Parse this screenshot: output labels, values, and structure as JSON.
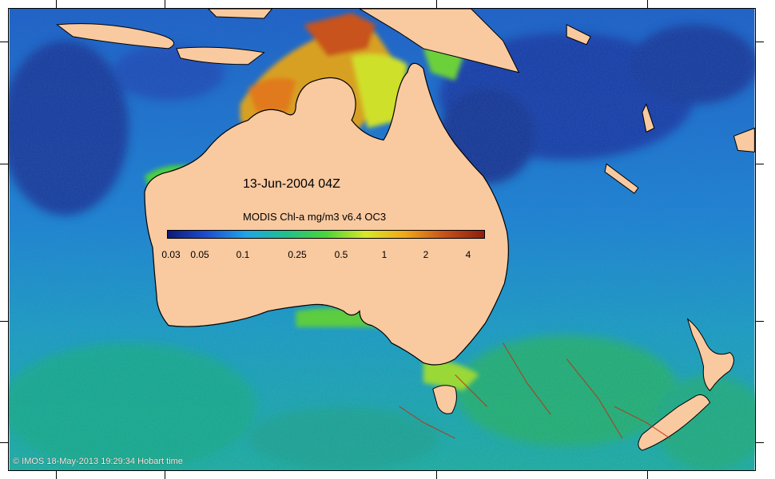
{
  "map": {
    "title": "13-Jun-2004 04Z",
    "colorbar_label": "MODIS Chl-a mg/m3 v6.4 OC3",
    "colorbar_ticks": [
      "0.03",
      "0.05",
      "0.1",
      "0.25",
      "0.5",
      "1",
      "2",
      "4"
    ],
    "colorbar_colors": [
      "#0a1a7a",
      "#1f4fd0",
      "#1fa6e6",
      "#21c08a",
      "#4cd43a",
      "#d8e82a",
      "#f0a818",
      "#c8501a",
      "#8a1f10"
    ],
    "credit": "© IMOS 18-May-2013 19:29:34 Hobart time",
    "land_color": "#f9c9a0",
    "ocean_colors": {
      "deep_blue": "#1a3aa8",
      "blue": "#1f7fd8",
      "teal": "#1fb0b4",
      "green": "#2dbf5c",
      "yellow": "#d8e02a",
      "orange": "#e8821c",
      "red": "#b8321a"
    }
  }
}
